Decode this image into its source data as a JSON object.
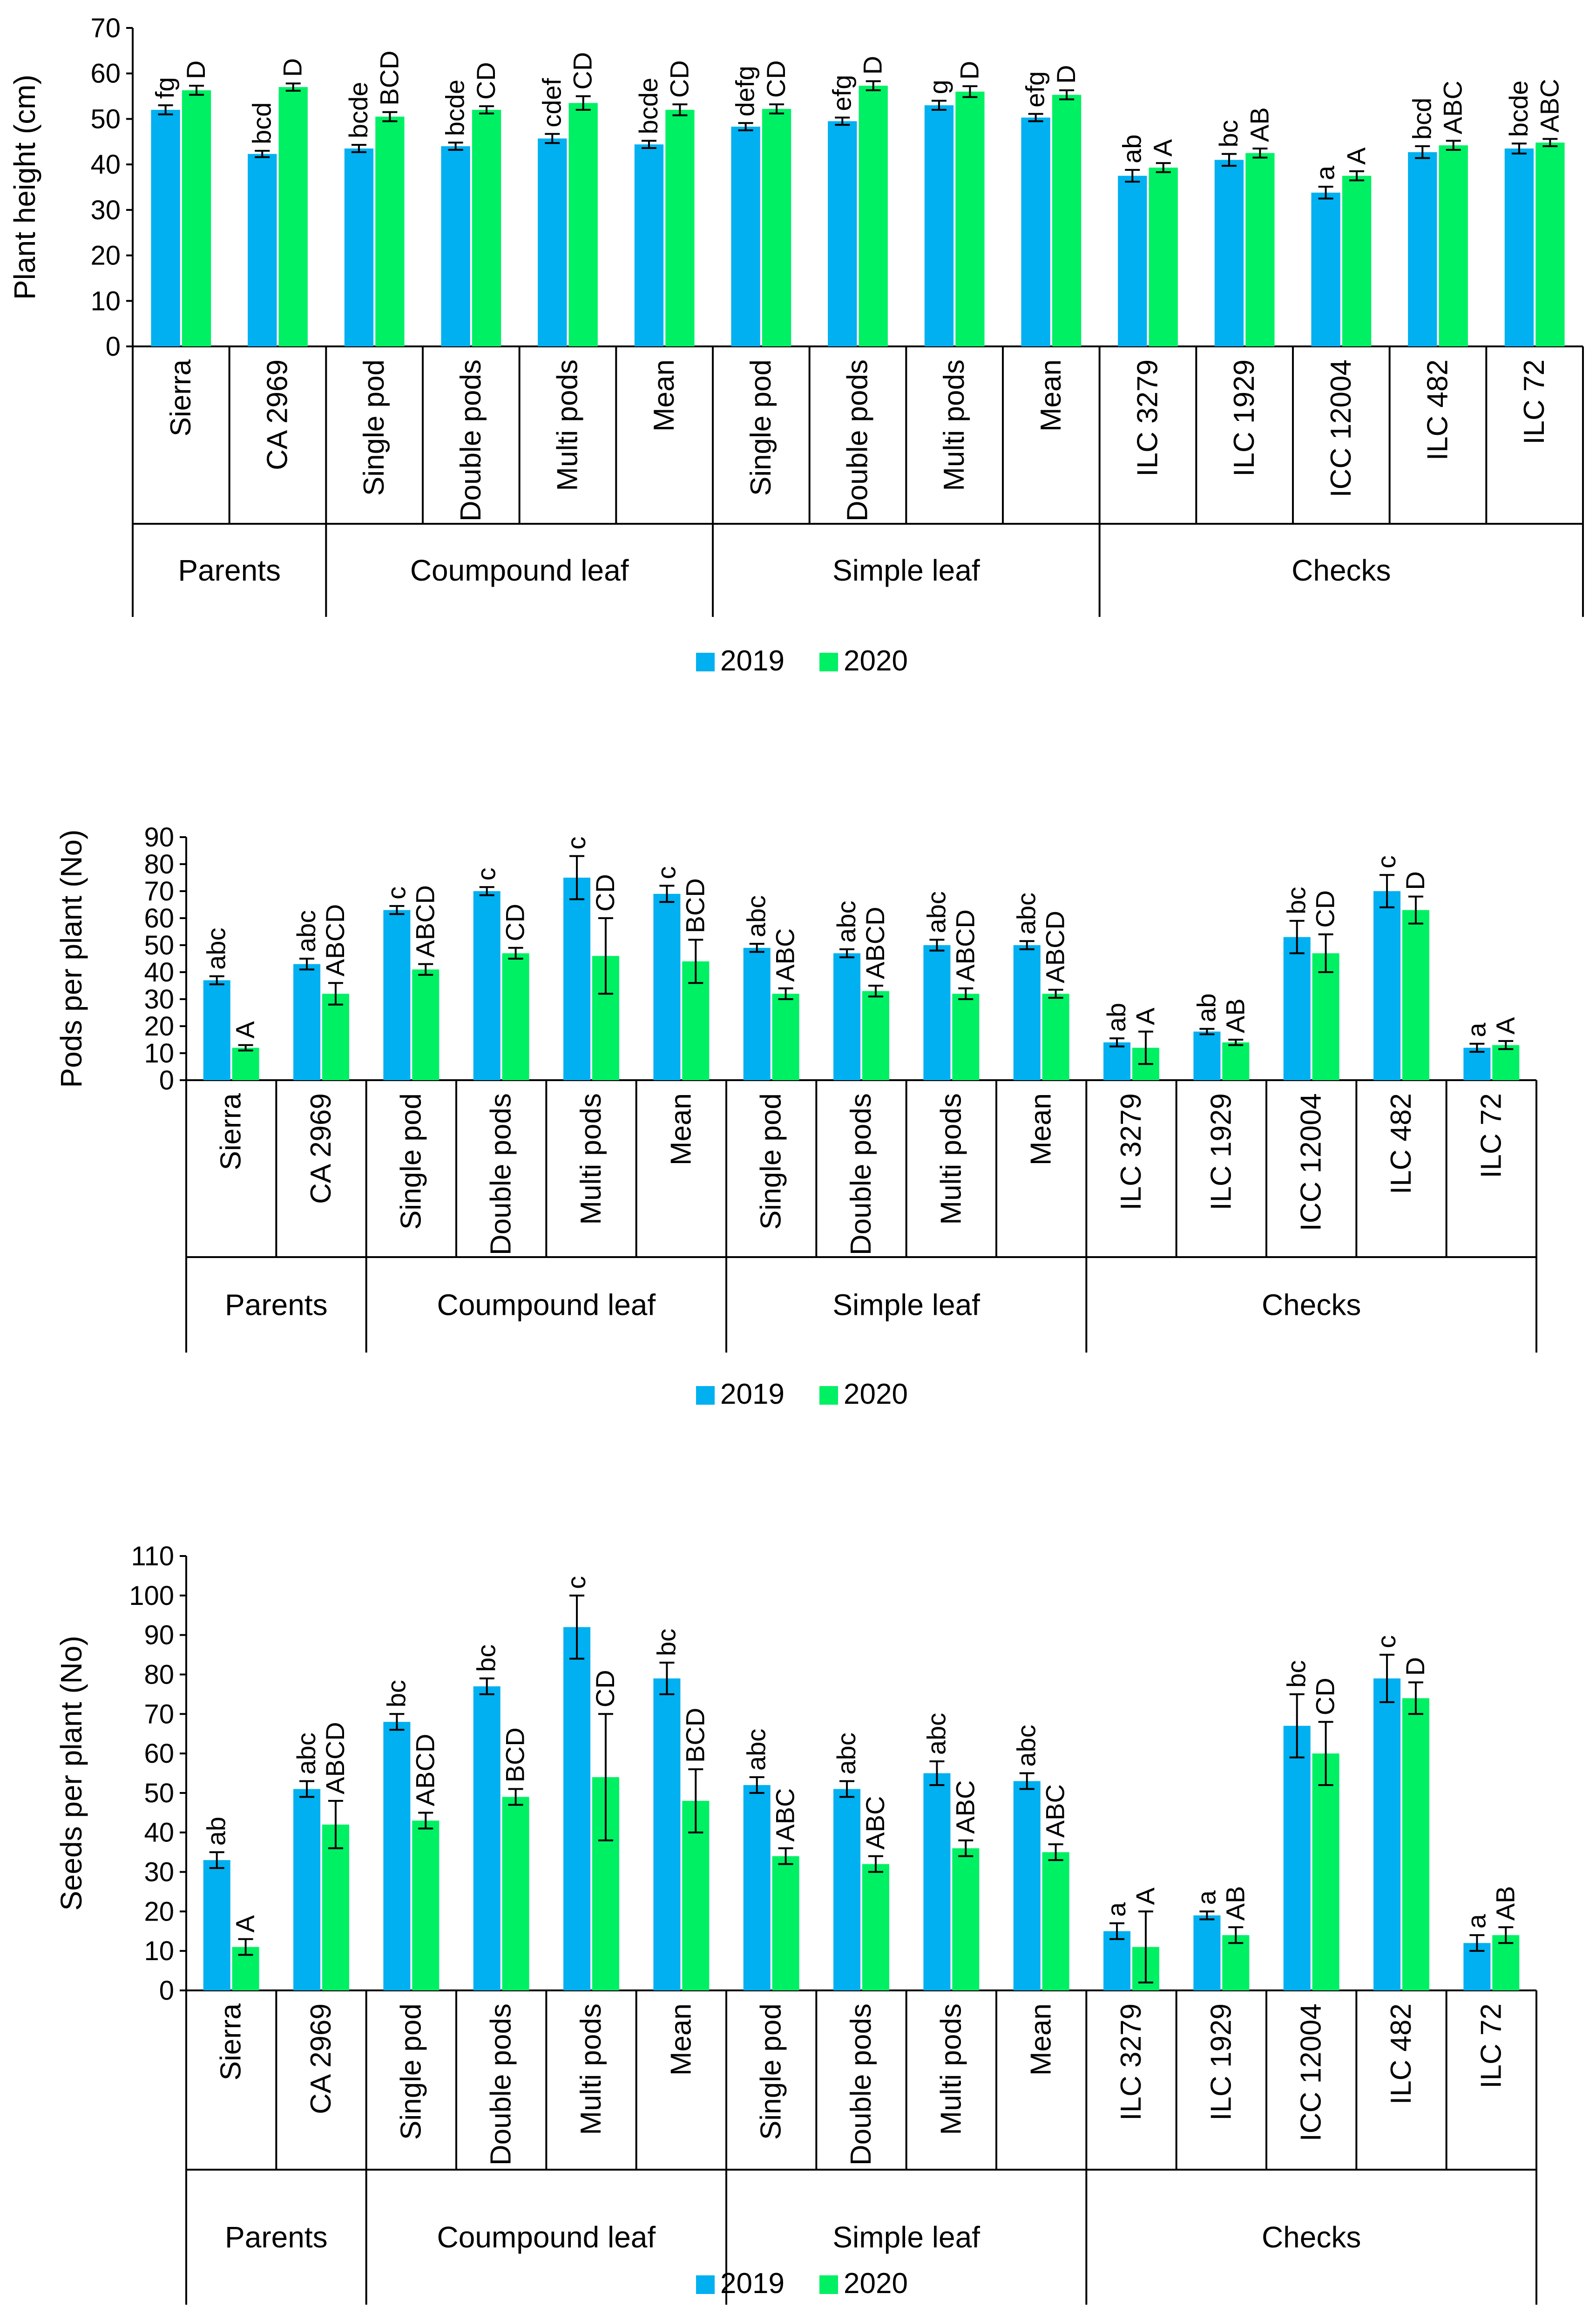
{
  "colors": {
    "y2019": "#00B0F0",
    "y2020": "#00F064",
    "axis": "#000000",
    "error": "#000000"
  },
  "legend": [
    {
      "label": "2019",
      "color": "#00B0F0"
    },
    {
      "label": "2020",
      "color": "#00F064"
    }
  ],
  "chart_data": [
    {
      "type": "bar",
      "ylabel": "Plant height (cm)",
      "ylim": [
        0,
        70
      ],
      "yticks": [
        0,
        10,
        20,
        30,
        40,
        50,
        60,
        70
      ],
      "categories": [
        "Sierra",
        "CA 2969",
        "Single pod",
        "Double pods",
        "Multi pods",
        "Mean",
        "Single pod",
        "Double pods",
        "Multi pods",
        "Mean",
        "ILC 3279",
        "ILC 1929",
        "ICC 12004",
        "ILC 482",
        "ILC 72"
      ],
      "groups": [
        {
          "label": "Parents",
          "span": 2
        },
        {
          "label": "Coumpound leaf",
          "span": 4
        },
        {
          "label": "Simple leaf",
          "span": 4
        },
        {
          "label": "Checks",
          "span": 5
        }
      ],
      "series": [
        {
          "name": "2019",
          "values": [
            52,
            42.3,
            43.5,
            44,
            45.7,
            44.4,
            48.3,
            49.5,
            53,
            50.3,
            37.5,
            41,
            33.8,
            42.7,
            43.5
          ],
          "errors": [
            1,
            0.7,
            0.8,
            0.8,
            1,
            0.8,
            0.8,
            0.8,
            1,
            0.8,
            1.3,
            1.3,
            1.3,
            1.3,
            1.1
          ],
          "letters": [
            "fg",
            "bcd",
            "bcde",
            "bcde",
            "cdef",
            "bcde",
            "defg",
            "efg",
            "g",
            "efg",
            "ab",
            "bc",
            "a",
            "bcd",
            "bcde"
          ]
        },
        {
          "name": "2020",
          "values": [
            56.3,
            57,
            50.5,
            52,
            53.5,
            52,
            52.2,
            57.3,
            56,
            55.3,
            39.3,
            42.5,
            37.5,
            44.2,
            44.8
          ],
          "errors": [
            1,
            0.8,
            1,
            0.8,
            1.5,
            1.2,
            1,
            1,
            1.2,
            1,
            1,
            1,
            1,
            1,
            0.8
          ],
          "letters": [
            "D",
            "D",
            "BCD",
            "CD",
            "CD",
            "CD",
            "CD",
            "D",
            "D",
            "D",
            "A",
            "AB",
            "A",
            "ABC",
            "ABC"
          ]
        }
      ]
    },
    {
      "type": "bar",
      "ylabel": "Pods per plant (No)",
      "ylim": [
        0,
        90
      ],
      "yticks": [
        0,
        10,
        20,
        30,
        40,
        50,
        60,
        70,
        80,
        90
      ],
      "categories": [
        "Sierra",
        "CA 2969",
        "Single pod",
        "Double pods",
        "Multi pods",
        "Mean",
        "Single pod",
        "Double pods",
        "Multi pods",
        "Mean",
        "ILC 3279",
        "ILC 1929",
        "ICC 12004",
        "ILC 482",
        "ILC 72"
      ],
      "groups": [
        {
          "label": "Parents",
          "span": 2
        },
        {
          "label": "Coumpound leaf",
          "span": 4
        },
        {
          "label": "Simple leaf",
          "span": 4
        },
        {
          "label": "Checks",
          "span": 5
        }
      ],
      "series": [
        {
          "name": "2019",
          "values": [
            37,
            43,
            63,
            70,
            75,
            69,
            49,
            47,
            50,
            50,
            14,
            18,
            53,
            70,
            12
          ],
          "errors": [
            1.5,
            2,
            1.5,
            1.5,
            8,
            3,
            1.5,
            1.5,
            2,
            1.5,
            1.5,
            1,
            6,
            6,
            1.5
          ],
          "letters": [
            "abc",
            "abc",
            "c",
            "c",
            "c",
            "c",
            "abc",
            "abc",
            "abc",
            "abc",
            "ab",
            "ab",
            "bc",
            "c",
            "a"
          ]
        },
        {
          "name": "2020",
          "values": [
            12,
            32,
            41,
            47,
            46,
            44,
            32,
            33,
            32,
            32,
            12,
            14,
            47,
            63,
            13
          ],
          "errors": [
            1,
            4,
            2,
            2,
            14,
            8,
            2,
            2,
            2,
            1.5,
            6,
            1,
            7,
            5,
            1.5
          ],
          "letters": [
            "A",
            "ABCD",
            "ABCD",
            "CD",
            "CD",
            "BCD",
            "ABC",
            "ABCD",
            "ABCD",
            "ABCD",
            "A",
            "AB",
            "CD",
            "D",
            "A"
          ]
        }
      ]
    },
    {
      "type": "bar",
      "ylabel": "Seeds per plant (No)",
      "ylim": [
        0,
        110
      ],
      "yticks": [
        0,
        10,
        20,
        30,
        40,
        50,
        60,
        70,
        80,
        90,
        100,
        110
      ],
      "categories": [
        "Sierra",
        "CA 2969",
        "Single pod",
        "Double pods",
        "Multi pods",
        "Mean",
        "Single pod",
        "Double pods",
        "Multi pods",
        "Mean",
        "ILC 3279",
        "ILC 1929",
        "ICC 12004",
        "ILC 482",
        "ILC 72"
      ],
      "groups": [
        {
          "label": "Parents",
          "span": 2
        },
        {
          "label": "Coumpound leaf",
          "span": 4
        },
        {
          "label": "Simple leaf",
          "span": 4
        },
        {
          "label": "Checks",
          "span": 5
        }
      ],
      "series": [
        {
          "name": "2019",
          "values": [
            33,
            51,
            68,
            77,
            92,
            79,
            52,
            51,
            55,
            53,
            15,
            19,
            67,
            79,
            12
          ],
          "errors": [
            2,
            2,
            2,
            2,
            8,
            4,
            2,
            2,
            3,
            2,
            2,
            1,
            8,
            6,
            2
          ],
          "letters": [
            "ab",
            "abc",
            "bc",
            "bc",
            "c",
            "bc",
            "abc",
            "abc",
            "abc",
            "abc",
            "a",
            "a",
            "bc",
            "c",
            "a"
          ]
        },
        {
          "name": "2020",
          "values": [
            11,
            42,
            43,
            49,
            54,
            48,
            34,
            32,
            36,
            35,
            11,
            14,
            60,
            74,
            14
          ],
          "errors": [
            2,
            6,
            2,
            2,
            16,
            8,
            2,
            2,
            2,
            2,
            9,
            2,
            8,
            4,
            2
          ],
          "letters": [
            "A",
            "ABCD",
            "ABCD",
            "BCD",
            "CD",
            "BCD",
            "ABC",
            "ABC",
            "ABC",
            "ABC",
            "A",
            "AB",
            "CD",
            "D",
            "AB"
          ]
        }
      ]
    }
  ]
}
